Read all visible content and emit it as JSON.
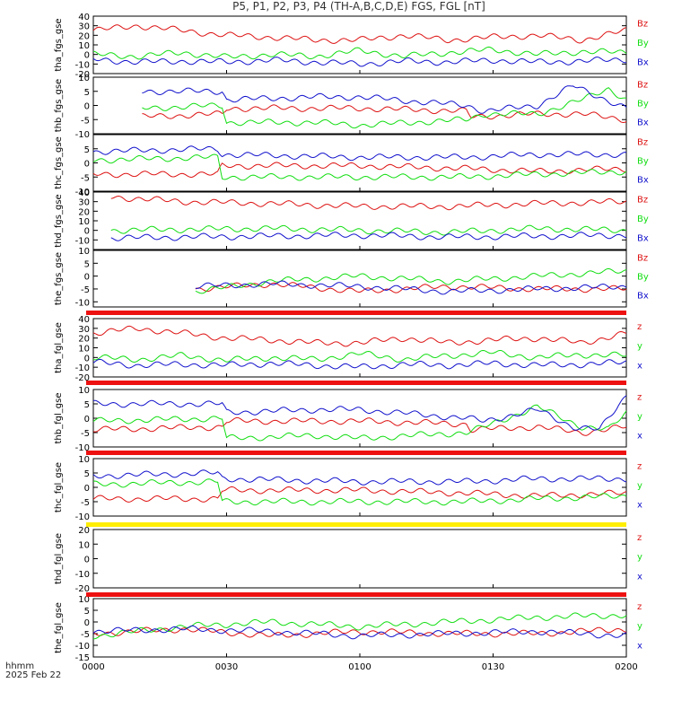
{
  "title": "P5, P1, P2, P3, P4 (TH-A,B,C,D,E) FGS, FGL [nT]",
  "time_axis": {
    "label": "hhmm",
    "date": "2025 Feb 22",
    "ticks": [
      "0000",
      "0030",
      "0100",
      "0130",
      "0200"
    ],
    "range_minutes": [
      0,
      120
    ]
  },
  "colors": {
    "z": "#dd1111",
    "y": "#11dd11",
    "x": "#1111cc"
  },
  "chart_data": [
    {
      "type": "line",
      "ylabel": "tha_fgs_gse",
      "ylim": [
        -20,
        40
      ],
      "yticks": [
        "-20",
        "-10",
        "0",
        "10",
        "20",
        "30",
        "40"
      ],
      "legend": [
        "Bz",
        "By",
        "Bx"
      ],
      "series": [
        {
          "name": "Bz",
          "start": 0,
          "end": 120,
          "x": [
            0,
            10,
            20,
            30,
            40,
            50,
            60,
            70,
            80,
            90,
            100,
            110,
            120
          ],
          "values": [
            25,
            30,
            25,
            20,
            18,
            15,
            15,
            20,
            15,
            18,
            20,
            15,
            25
          ]
        },
        {
          "name": "By",
          "start": 0,
          "end": 120,
          "x": [
            0,
            10,
            20,
            30,
            40,
            50,
            60,
            70,
            80,
            90,
            100,
            110,
            120
          ],
          "values": [
            0,
            -2,
            2,
            -3,
            0,
            -2,
            4,
            -2,
            2,
            5,
            0,
            3,
            2
          ]
        },
        {
          "name": "Bx",
          "start": 0,
          "end": 120,
          "x": [
            0,
            10,
            20,
            30,
            40,
            50,
            60,
            70,
            80,
            90,
            100,
            110,
            120
          ],
          "values": [
            -5,
            -8,
            -7,
            -8,
            -6,
            -8,
            -10,
            -7,
            -8,
            -6,
            -8,
            -7,
            -5
          ]
        }
      ]
    },
    {
      "type": "line",
      "ylabel": "thb_fgs_gse",
      "ylim": [
        -10,
        10
      ],
      "yticks": [
        "-10",
        "-5",
        "0",
        "5",
        "10"
      ],
      "legend": [
        "Bz",
        "By",
        "Bx"
      ],
      "series": [
        {
          "name": "Bz",
          "start": 11,
          "end": 120,
          "x": [
            11,
            29,
            30,
            60,
            84,
            85,
            100,
            110,
            120
          ],
          "values": [
            -4,
            -3,
            -1,
            -1,
            -2,
            -4,
            -3,
            -3,
            -5
          ]
        },
        {
          "name": "By",
          "start": 11,
          "end": 120,
          "x": [
            11,
            29,
            30,
            50,
            60,
            84,
            88,
            100,
            110,
            116,
            120
          ],
          "values": [
            -1,
            0,
            -6,
            -6,
            -7,
            -5,
            -3,
            -3,
            2,
            6,
            2
          ]
        },
        {
          "name": "Bx",
          "start": 11,
          "end": 120,
          "x": [
            11,
            29,
            30,
            50,
            60,
            84,
            88,
            100,
            108,
            114,
            120
          ],
          "values": [
            5,
            5,
            2,
            3,
            3,
            0,
            -2,
            0,
            7,
            3,
            -1
          ]
        }
      ]
    },
    {
      "type": "line",
      "ylabel": "thc_fgs_gse",
      "ylim": [
        -10,
        10
      ],
      "yticks": [
        "-10",
        "-5",
        "0",
        "5"
      ],
      "legend": [
        "Bz",
        "By",
        "Bx"
      ],
      "series": [
        {
          "name": "Bz",
          "start": 0,
          "end": 120,
          "x": [
            0,
            28,
            29,
            60,
            84,
            100,
            120
          ],
          "values": [
            -4,
            -4,
            -1,
            -1,
            -2,
            -3,
            -2
          ]
        },
        {
          "name": "By",
          "start": 0,
          "end": 120,
          "x": [
            0,
            28,
            29,
            60,
            84,
            100,
            120
          ],
          "values": [
            1,
            2,
            -5,
            -5,
            -5,
            -4,
            -3
          ]
        },
        {
          "name": "Bx",
          "start": 0,
          "end": 120,
          "x": [
            0,
            28,
            29,
            60,
            84,
            100,
            120
          ],
          "values": [
            4,
            5,
            3,
            2,
            2,
            3,
            3
          ]
        }
      ]
    },
    {
      "type": "line",
      "ylabel": "thd_fgs_gse",
      "ylim": [
        -20,
        40
      ],
      "yticks": [
        "-10",
        "0",
        "10",
        "20",
        "30",
        "40"
      ],
      "legend": [
        "Bz",
        "By",
        "Bx"
      ],
      "series": [
        {
          "name": "Bz",
          "start": 4,
          "end": 120,
          "x": [
            4,
            20,
            40,
            60,
            80,
            100,
            120
          ],
          "values": [
            35,
            30,
            28,
            25,
            25,
            28,
            30
          ]
        },
        {
          "name": "By",
          "start": 4,
          "end": 120,
          "x": [
            4,
            20,
            40,
            60,
            80,
            100,
            120
          ],
          "values": [
            0,
            1,
            2,
            0,
            -2,
            2,
            0
          ]
        },
        {
          "name": "Bx",
          "start": 4,
          "end": 120,
          "x": [
            4,
            20,
            40,
            60,
            80,
            100,
            120
          ],
          "values": [
            -8,
            -7,
            -6,
            -5,
            -7,
            -6,
            -5
          ]
        }
      ]
    },
    {
      "type": "line",
      "ylabel": "the_fgs_gse",
      "ylim": [
        -12,
        10
      ],
      "yticks": [
        "-10",
        "-5",
        "0",
        "5",
        "10"
      ],
      "legend": [
        "Bz",
        "By",
        "Bx"
      ],
      "series": [
        {
          "name": "Bz",
          "start": 23,
          "end": 120,
          "x": [
            23,
            40,
            60,
            80,
            100,
            120
          ],
          "values": [
            -5,
            -3,
            -6,
            -4,
            -5,
            -5
          ]
        },
        {
          "name": "By",
          "start": 23,
          "end": 120,
          "x": [
            23,
            40,
            60,
            80,
            100,
            120
          ],
          "values": [
            -6,
            -2,
            0,
            -2,
            0,
            2
          ]
        },
        {
          "name": "Bx",
          "start": 23,
          "end": 120,
          "x": [
            23,
            40,
            60,
            80,
            100,
            120
          ],
          "values": [
            -4,
            -3,
            -4,
            -6,
            -5,
            -4
          ]
        }
      ]
    },
    {
      "type": "line",
      "ylabel": "tha_fgl_gse",
      "ylim": [
        -20,
        40
      ],
      "yticks": [
        "-20",
        "-10",
        "0",
        "10",
        "20",
        "30",
        "40"
      ],
      "legend": [
        "z",
        "y",
        "x"
      ],
      "series": [
        {
          "name": "z",
          "start": 0,
          "end": 120,
          "x": [
            0,
            10,
            20,
            30,
            40,
            50,
            60,
            70,
            80,
            90,
            100,
            110,
            120
          ],
          "values": [
            25,
            30,
            25,
            20,
            18,
            15,
            15,
            20,
            15,
            18,
            20,
            15,
            25
          ]
        },
        {
          "name": "y",
          "start": 0,
          "end": 120,
          "x": [
            0,
            10,
            20,
            30,
            40,
            50,
            60,
            70,
            80,
            90,
            100,
            110,
            120
          ],
          "values": [
            0,
            -2,
            2,
            -3,
            0,
            -2,
            4,
            -2,
            2,
            5,
            0,
            3,
            2
          ]
        },
        {
          "name": "x",
          "start": 0,
          "end": 120,
          "x": [
            0,
            10,
            20,
            30,
            40,
            50,
            60,
            70,
            80,
            90,
            100,
            110,
            120
          ],
          "values": [
            -5,
            -8,
            -7,
            -8,
            -6,
            -8,
            -10,
            -7,
            -8,
            -6,
            -8,
            -7,
            -5
          ]
        }
      ]
    },
    {
      "type": "line",
      "ylabel": "thb_fgl_gse",
      "ylim": [
        -10,
        10
      ],
      "yticks": [
        "-10",
        "-5",
        "0",
        "5",
        "10"
      ],
      "legend": [
        "z",
        "y",
        "x"
      ],
      "series": [
        {
          "name": "z",
          "start": 0,
          "end": 120,
          "x": [
            0,
            29,
            30,
            60,
            84,
            85,
            100,
            110,
            120
          ],
          "values": [
            -4,
            -3,
            -1,
            -1,
            -2,
            -4,
            -3,
            -5,
            -3
          ]
        },
        {
          "name": "y",
          "start": 0,
          "end": 120,
          "x": [
            0,
            29,
            30,
            50,
            60,
            84,
            88,
            100,
            110,
            116,
            120
          ],
          "values": [
            -1,
            0,
            -7,
            -6,
            -7,
            -5,
            -3,
            4,
            -3,
            -4,
            2
          ]
        },
        {
          "name": "x",
          "start": 0,
          "end": 120,
          "x": [
            0,
            29,
            30,
            50,
            60,
            84,
            88,
            100,
            108,
            114,
            120
          ],
          "values": [
            5,
            5,
            2,
            3,
            3,
            0,
            -1,
            3,
            -3,
            -4,
            8
          ]
        }
      ]
    },
    {
      "type": "line",
      "ylabel": "thc_fgl_gse",
      "ylim": [
        -10,
        10
      ],
      "yticks": [
        "-10",
        "-5",
        "0",
        "5",
        "10"
      ],
      "legend": [
        "z",
        "y",
        "x"
      ],
      "series": [
        {
          "name": "z",
          "start": 0,
          "end": 120,
          "x": [
            0,
            28,
            29,
            60,
            84,
            100,
            120
          ],
          "values": [
            -4,
            -4,
            -1,
            -1,
            -2,
            -3,
            -2
          ]
        },
        {
          "name": "y",
          "start": 0,
          "end": 120,
          "x": [
            0,
            28,
            29,
            60,
            84,
            100,
            120
          ],
          "values": [
            1,
            2,
            -5,
            -5,
            -5,
            -4,
            -3
          ]
        },
        {
          "name": "x",
          "start": 0,
          "end": 120,
          "x": [
            0,
            28,
            29,
            60,
            84,
            100,
            120
          ],
          "values": [
            4,
            5,
            3,
            2,
            2,
            3,
            3
          ]
        }
      ]
    },
    {
      "type": "line",
      "ylabel": "thd_fgl_gse",
      "ylim": [
        -20,
        20
      ],
      "yticks": [
        "-20",
        "-10",
        "0",
        "10",
        "20"
      ],
      "legend": [
        "z",
        "y",
        "x"
      ],
      "series": []
    },
    {
      "type": "line",
      "ylabel": "the_fgl_gse",
      "ylim": [
        -15,
        10
      ],
      "yticks": [
        "-15",
        "-10",
        "-5",
        "0",
        "5",
        "10"
      ],
      "legend": [
        "z",
        "y",
        "x"
      ],
      "series": [
        {
          "name": "z",
          "start": 0,
          "end": 120,
          "x": [
            0,
            20,
            40,
            60,
            80,
            100,
            120
          ],
          "values": [
            -5,
            -3,
            -6,
            -4,
            -5,
            -5,
            -3
          ]
        },
        {
          "name": "y",
          "start": 0,
          "end": 120,
          "x": [
            0,
            20,
            40,
            60,
            80,
            100,
            120
          ],
          "values": [
            -6,
            -2,
            0,
            -2,
            0,
            2,
            3
          ]
        },
        {
          "name": "x",
          "start": 0,
          "end": 120,
          "x": [
            0,
            20,
            40,
            60,
            80,
            100,
            120
          ],
          "values": [
            -4,
            -3,
            -4,
            -6,
            -5,
            -4,
            -6
          ]
        }
      ]
    }
  ],
  "quality_bars": [
    {
      "color": "#ee1111"
    },
    {
      "color": "#ee1111"
    },
    {
      "color": "#ee1111"
    },
    {
      "color": "#ffee00"
    },
    {
      "color": "#ee1111"
    }
  ]
}
